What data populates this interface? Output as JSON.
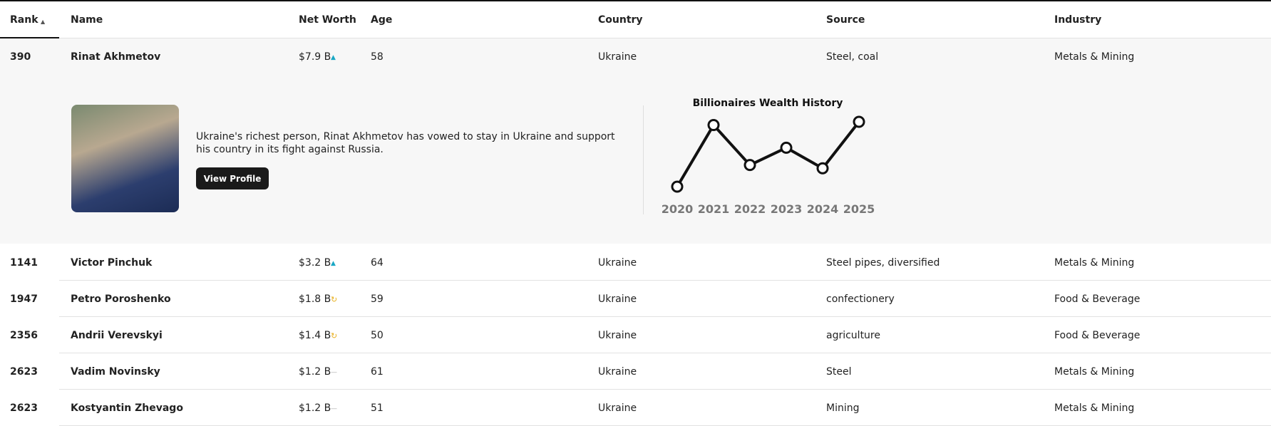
{
  "header": {
    "columns": [
      "Rank",
      "Name",
      "Net Worth",
      "Age",
      "Country",
      "Source",
      "Industry"
    ]
  },
  "rows": [
    {
      "rank": "390",
      "name": "Rinat Akhmetov",
      "net_worth": "$7.9 B",
      "trend": "up",
      "age": "58",
      "country": "Ukraine",
      "source": "Steel, coal",
      "industry": "Metals & Mining"
    },
    {
      "rank": "1141",
      "name": "Victor Pinchuk",
      "net_worth": "$3.2 B",
      "trend": "up",
      "age": "64",
      "country": "Ukraine",
      "source": "Steel pipes, diversified",
      "industry": "Metals & Mining"
    },
    {
      "rank": "1947",
      "name": "Petro Poroshenko",
      "net_worth": "$1.8 B",
      "trend": "down",
      "age": "59",
      "country": "Ukraine",
      "source": "confectionery",
      "industry": "Food & Beverage"
    },
    {
      "rank": "2356",
      "name": "Andrii Verevskyi",
      "net_worth": "$1.4 B",
      "trend": "down",
      "age": "50",
      "country": "Ukraine",
      "source": "agriculture",
      "industry": "Food & Beverage"
    },
    {
      "rank": "2623",
      "name": "Vadim Novinsky",
      "net_worth": "$1.2 B",
      "trend": "flat",
      "age": "61",
      "country": "Ukraine",
      "source": "Steel",
      "industry": "Metals & Mining"
    },
    {
      "rank": "2623",
      "name": "Kostyantin Zhevago",
      "net_worth": "$1.2 B",
      "trend": "flat",
      "age": "51",
      "country": "Ukraine",
      "source": "Mining",
      "industry": "Metals & Mining"
    }
  ],
  "detail": {
    "description": "Ukraine's richest person, Rinat Akhmetov has vowed to stay in Ukraine and support his country in its fight against Russia.",
    "button": "View Profile"
  },
  "chart_data": {
    "type": "line",
    "title": "Billionaires Wealth History",
    "categories": [
      "2020",
      "2021",
      "2022",
      "2023",
      "2024",
      "2025"
    ],
    "values": [
      1.9,
      7.6,
      3.9,
      5.5,
      3.6,
      7.9
    ],
    "ylim": [
      1.9,
      7.9
    ],
    "color": "#111111"
  }
}
